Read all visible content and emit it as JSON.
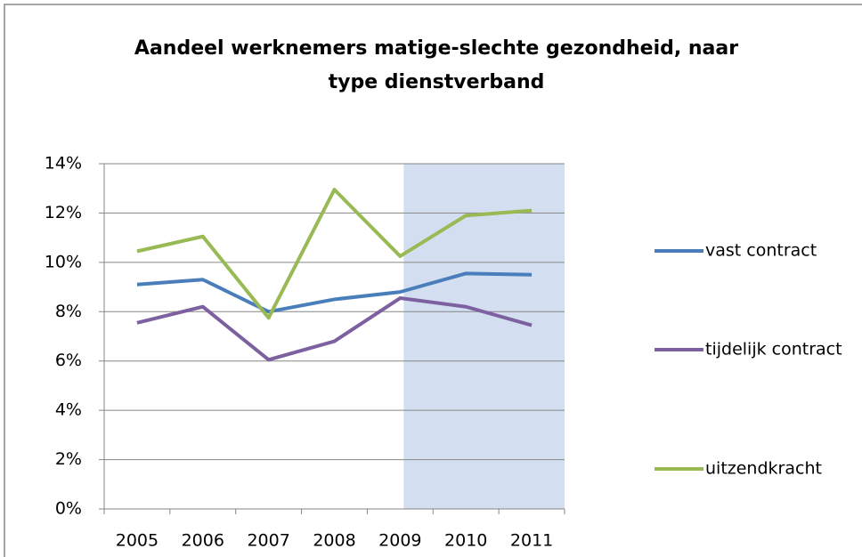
{
  "chart_data": {
    "type": "line",
    "title": "Aandeel werknemers matige-slechte gezondheid, naar",
    "subtitle": "type dienstverband",
    "categories": [
      "2005",
      "2006",
      "2007",
      "2008",
      "2009",
      "2010",
      "2011"
    ],
    "highlight_from": "2009",
    "series": [
      {
        "name": "vast contract",
        "color": "#4a7ebb",
        "values": [
          9.1,
          9.3,
          8.0,
          8.5,
          8.8,
          9.55,
          9.5
        ]
      },
      {
        "name": "tijdelijk contract",
        "color": "#7d60a0",
        "values": [
          7.55,
          8.2,
          6.05,
          6.8,
          8.55,
          8.2,
          7.45
        ]
      },
      {
        "name": "uitzendkracht",
        "color": "#98b954",
        "values": [
          10.45,
          11.05,
          7.75,
          12.95,
          10.25,
          11.9,
          12.1
        ]
      }
    ],
    "ylim": [
      0,
      14
    ],
    "yticks": [
      {
        "value": 0,
        "label": "0%"
      },
      {
        "value": 2,
        "label": "2%"
      },
      {
        "value": 4,
        "label": "4%"
      },
      {
        "value": 6,
        "label": "6%"
      },
      {
        "value": 8,
        "label": "8%"
      },
      {
        "value": 10,
        "label": "10%"
      },
      {
        "value": 12,
        "label": "12%"
      },
      {
        "value": 14,
        "label": "14%"
      }
    ],
    "grid": true,
    "legend": "right"
  }
}
